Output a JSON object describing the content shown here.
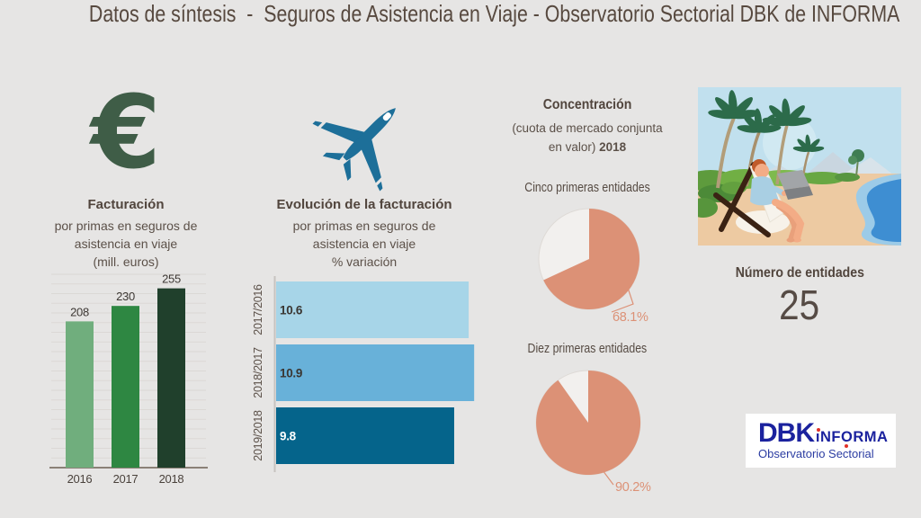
{
  "title": "Datos de síntesis  -  Seguros de Asistencia en Viaje - Observatorio Sectorial DBK de INFORMA",
  "facturacion": {
    "heading": "Facturación",
    "line1": "por primas en seguros de",
    "line2": "asistencia en viaje",
    "line3": "(mill. euros)"
  },
  "evolucion": {
    "heading": "Evolución de la facturación",
    "line1": "por primas en seguros de",
    "line2": "asistencia en viaje",
    "line3": "% variación"
  },
  "concentracion": {
    "heading": "Concentración",
    "sub1": "(cuota de mercado conjunta",
    "sub2": "en valor)",
    "year": "2018",
    "pie1_title": "Cinco primeras entidades",
    "pie2_title": "Diez primeras entidades"
  },
  "entidades": {
    "label": "Número de entidades",
    "value": "25"
  },
  "logo": {
    "dbk": "DBK",
    "i": "ı",
    "nf": "NF",
    "o": "O",
    "rma": "RMA",
    "subtitle": "Observatorio Sectorial"
  },
  "colors": {
    "background": "#e6e5e4",
    "text": "#5b5048",
    "euro_icon": "#3f5d47",
    "airplane_icon": "#1d6f99",
    "pie_fill": "#dc9176",
    "logo_navy": "#1b229e",
    "logo_red": "#e23127"
  },
  "chart_data": [
    {
      "type": "bar",
      "title": "Facturación por primas en seguros de asistencia en viaje",
      "ylabel": "mill. euros",
      "categories": [
        "2016",
        "2017",
        "2018"
      ],
      "values": [
        208,
        230,
        255
      ],
      "bar_colors": [
        "#70ae7d",
        "#2e8742",
        "#20402c"
      ],
      "ylim": [
        0,
        275
      ],
      "grid": true,
      "legend": false
    },
    {
      "type": "bar",
      "orientation": "horizontal",
      "title": "Evolución de la facturación (% variación)",
      "categories": [
        "2017/2016",
        "2018/2017",
        "2019/2018"
      ],
      "values": [
        10.6,
        10.9,
        9.8
      ],
      "bar_colors": [
        "#a7d5e8",
        "#68b1d9",
        "#05648b"
      ],
      "value_label_colors": [
        "#3a3632",
        "#3a3632",
        "#ffffff"
      ],
      "xlim": [
        0,
        11.5
      ],
      "grid": false,
      "legend": false
    },
    {
      "type": "pie",
      "title": "Cinco primeras entidades",
      "slices": [
        {
          "label": "68.1%",
          "value": 68.1,
          "color": "#dc9176"
        },
        {
          "label": "",
          "value": 31.9,
          "color": "#f2f0ee"
        }
      ]
    },
    {
      "type": "pie",
      "title": "Diez primeras entidades",
      "slices": [
        {
          "label": "90.2%",
          "value": 90.2,
          "color": "#dc9176"
        },
        {
          "label": "",
          "value": 9.8,
          "color": "#f2f0ee"
        }
      ]
    }
  ]
}
